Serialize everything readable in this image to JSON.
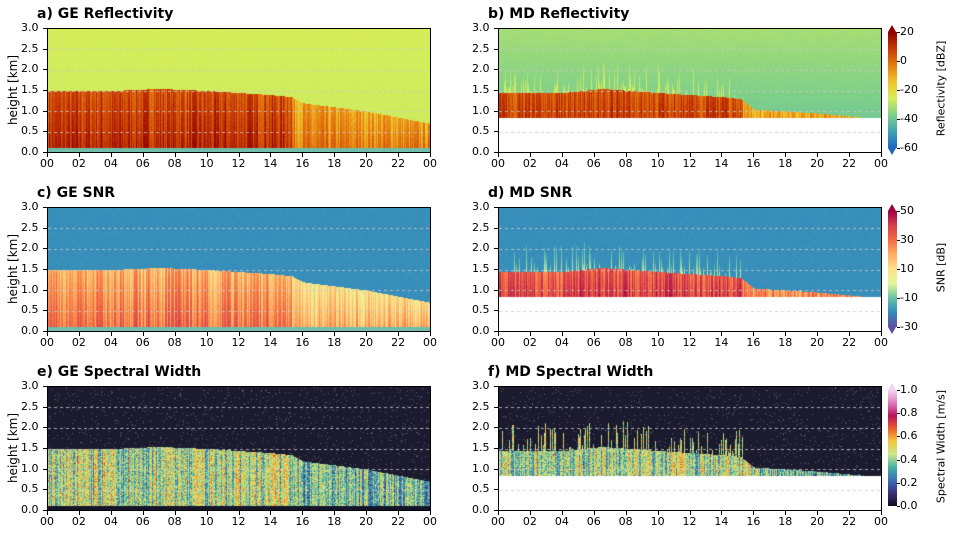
{
  "chart_data": [
    {
      "type": "heatmap",
      "title": "a) GE Reflectivity",
      "ylabel": "height [km]",
      "xlim": [
        "00",
        "00"
      ],
      "ylim": [
        0,
        3
      ],
      "xticks": [
        "00",
        "02",
        "04",
        "06",
        "08",
        "10",
        "12",
        "14",
        "16",
        "18",
        "20",
        "22",
        "00"
      ],
      "yticks": [
        "0.0",
        "0.5",
        "1.0",
        "1.5",
        "2.0",
        "2.5",
        "3.0"
      ],
      "var": "refl",
      "instrument": "GE",
      "grid": "horizontal dashed"
    },
    {
      "type": "heatmap",
      "title": "b) MD Reflectivity",
      "ylabel": "",
      "xlim": [
        "00",
        "00"
      ],
      "ylim": [
        0,
        3
      ],
      "xticks": [
        "00",
        "02",
        "04",
        "06",
        "08",
        "10",
        "12",
        "14",
        "16",
        "18",
        "20",
        "22",
        "00"
      ],
      "yticks": [
        "0.0",
        "0.5",
        "1.0",
        "1.5",
        "2.0",
        "2.5",
        "3.0"
      ],
      "var": "refl",
      "instrument": "MD",
      "grid": "horizontal dashed"
    },
    {
      "type": "heatmap",
      "title": "c) GE SNR",
      "ylabel": "height [km]",
      "xlim": [
        "00",
        "00"
      ],
      "ylim": [
        0,
        3
      ],
      "xticks": [
        "00",
        "02",
        "04",
        "06",
        "08",
        "10",
        "12",
        "14",
        "16",
        "18",
        "20",
        "22",
        "00"
      ],
      "yticks": [
        "0.0",
        "0.5",
        "1.0",
        "1.5",
        "2.0",
        "2.5",
        "3.0"
      ],
      "var": "snr",
      "instrument": "GE",
      "grid": "horizontal dashed"
    },
    {
      "type": "heatmap",
      "title": "d) MD SNR",
      "ylabel": "",
      "xlim": [
        "00",
        "00"
      ],
      "ylim": [
        0,
        3
      ],
      "xticks": [
        "00",
        "02",
        "04",
        "06",
        "08",
        "10",
        "12",
        "14",
        "16",
        "18",
        "20",
        "22",
        "00"
      ],
      "yticks": [
        "0.0",
        "0.5",
        "1.0",
        "1.5",
        "2.0",
        "2.5",
        "3.0"
      ],
      "var": "snr",
      "instrument": "MD",
      "grid": "horizontal dashed"
    },
    {
      "type": "heatmap",
      "title": "e) GE Spectral Width",
      "ylabel": "height [km]",
      "xlim": [
        "00",
        "00"
      ],
      "ylim": [
        0,
        3
      ],
      "xticks": [
        "00",
        "02",
        "04",
        "06",
        "08",
        "10",
        "12",
        "14",
        "16",
        "18",
        "20",
        "22",
        "00"
      ],
      "yticks": [
        "0.0",
        "0.5",
        "1.0",
        "1.5",
        "2.0",
        "2.5",
        "3.0"
      ],
      "var": "sw",
      "instrument": "GE",
      "grid": "horizontal dashed"
    },
    {
      "type": "heatmap",
      "title": "f) MD Spectral Width",
      "ylabel": "",
      "xlim": [
        "00",
        "00"
      ],
      "ylim": [
        0,
        3
      ],
      "xticks": [
        "00",
        "02",
        "04",
        "06",
        "08",
        "10",
        "12",
        "14",
        "16",
        "18",
        "20",
        "22",
        "00"
      ],
      "yticks": [
        "0.0",
        "0.5",
        "1.0",
        "1.5",
        "2.0",
        "2.5",
        "3.0"
      ],
      "var": "sw",
      "instrument": "MD",
      "grid": "horizontal dashed"
    }
  ],
  "cloud_top_km": {
    "GE": {
      "hours": [
        0,
        4,
        7,
        10,
        12,
        14,
        15.3,
        16,
        18,
        20,
        22,
        24
      ],
      "top": [
        1.5,
        1.5,
        1.55,
        1.5,
        1.45,
        1.4,
        1.35,
        1.2,
        1.1,
        1.0,
        0.85,
        0.7
      ],
      "base": 0.1
    },
    "MD": {
      "hours": [
        0,
        4,
        6.5,
        10,
        14,
        15.2,
        16,
        20,
        22.8,
        24
      ],
      "top": [
        1.45,
        1.45,
        1.55,
        1.45,
        1.35,
        1.3,
        1.05,
        0.95,
        0.85,
        0.85
      ],
      "lowest_range_gate": 0.85
    }
  },
  "colorbars": [
    {
      "label": "Reflectivity [dBZ]",
      "ticks": [
        "20",
        "0",
        "-20",
        "-40",
        "-60"
      ],
      "range": [
        -60,
        20
      ],
      "extend": "both",
      "colors": [
        "#2166c0",
        "#3fa3b5",
        "#7fd08a",
        "#d6ee5a",
        "#f2c22a",
        "#e47a10",
        "#c83a05",
        "#8e0000"
      ]
    },
    {
      "label": "SNR [dB]",
      "ticks": [
        "50",
        "30",
        "10",
        "-10",
        "-30"
      ],
      "range": [
        -30,
        50
      ],
      "extend": "both",
      "colors": [
        "#5e4fa2",
        "#3288bd",
        "#66c2a5",
        "#e6f598",
        "#fee08b",
        "#fdae61",
        "#f46d43",
        "#d53e4f",
        "#9e0142"
      ]
    },
    {
      "label": "Spectral Width [m/s]",
      "ticks": [
        "1.0",
        "0.8",
        "0.6",
        "0.4",
        "0.2",
        "0.0"
      ],
      "range": [
        0,
        1
      ],
      "extend": "max",
      "colors": [
        "#0d0c1a",
        "#3b2f7a",
        "#3a6fb5",
        "#48b0a0",
        "#c9e88a",
        "#f5c842",
        "#e8602a",
        "#b8145a",
        "#e27ac0",
        "#f0d6f0"
      ]
    }
  ]
}
